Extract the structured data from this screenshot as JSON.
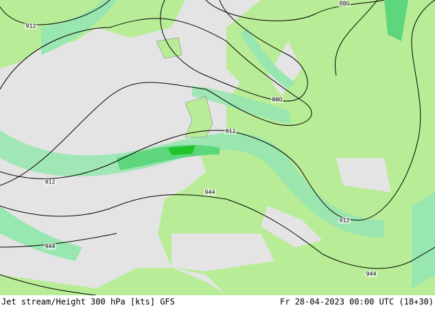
{
  "footer": {
    "title": "Jet stream/Height 300 hPa [kts] GFS",
    "valid_time": "Fr 28-04-2023 00:00 UTC (18+30)"
  },
  "contour_labels": [
    "912",
    "880",
    "880",
    "912",
    "912",
    "944",
    "912",
    "944",
    "944"
  ]
}
